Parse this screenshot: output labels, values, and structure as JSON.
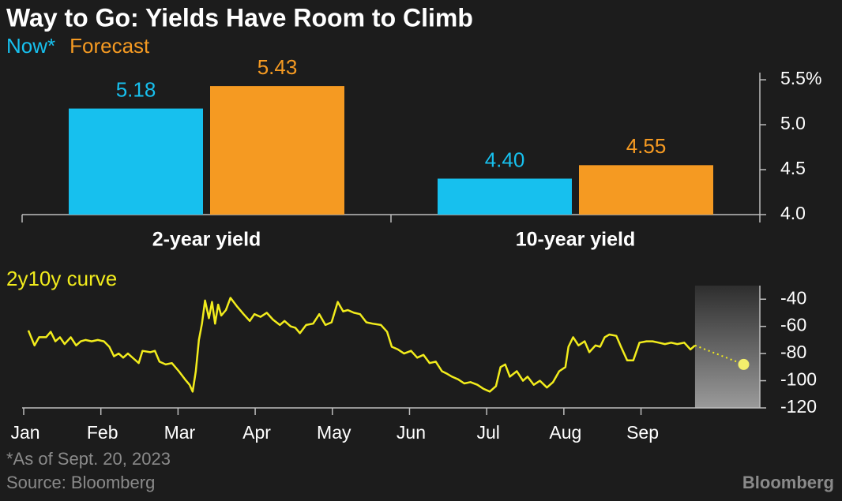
{
  "title": "Way to Go: Yields Have Room to Climb",
  "footnote": "*As of Sept. 20, 2023",
  "source": "Source: Bloomberg",
  "logo": "Bloomberg",
  "chart_data": [
    {
      "type": "bar",
      "categories": [
        "2-year yield",
        "10-year yield"
      ],
      "series": [
        {
          "name": "Now*",
          "color": "#17c0ee",
          "values": [
            5.18,
            4.4
          ],
          "value_labels": [
            "5.18",
            "4.40"
          ]
        },
        {
          "name": "Forecast",
          "color": "#f59a22",
          "values": [
            5.43,
            4.55
          ],
          "value_labels": [
            "5.43",
            "4.55"
          ]
        }
      ],
      "ylim": [
        4.0,
        5.58
      ],
      "yticks": [
        {
          "value": 4.0,
          "label": "4.0"
        },
        4.5,
        {
          "value": 5.0,
          "label": "5.0"
        },
        {
          "value": 5.5,
          "label": "5.5%"
        }
      ]
    },
    {
      "type": "line",
      "title": "2y10y curve",
      "color": "#f2ec1c",
      "x": [
        0.06,
        0.14,
        0.2,
        0.29,
        0.35,
        0.41,
        0.47,
        0.53,
        0.61,
        0.68,
        0.74,
        0.8,
        0.88,
        0.96,
        1.04,
        1.11,
        1.17,
        1.23,
        1.29,
        1.35,
        1.43,
        1.49,
        1.54,
        1.64,
        1.7,
        1.76,
        1.84,
        1.92,
        2.01,
        2.09,
        2.15,
        2.19,
        2.23,
        2.27,
        2.31,
        2.35,
        2.4,
        2.44,
        2.48,
        2.52,
        2.56,
        2.62,
        2.68,
        2.76,
        2.85,
        2.93,
        2.99,
        3.07,
        3.15,
        3.23,
        3.32,
        3.38,
        3.46,
        3.52,
        3.58,
        3.66,
        3.75,
        3.83,
        3.91,
        3.99,
        4.07,
        4.14,
        4.2,
        4.28,
        4.36,
        4.44,
        4.52,
        4.63,
        4.71,
        4.77,
        4.85,
        4.93,
        5.02,
        5.1,
        5.18,
        5.26,
        5.34,
        5.42,
        5.49,
        5.55,
        5.63,
        5.71,
        5.79,
        5.88,
        5.96,
        6.04,
        6.12,
        6.18,
        6.24,
        6.3,
        6.39,
        6.47,
        6.53,
        6.61,
        6.69,
        6.78,
        6.86,
        6.94,
        7.02,
        7.06,
        7.12,
        7.19,
        7.27,
        7.33,
        7.41,
        7.47,
        7.53,
        7.59,
        7.68,
        7.74,
        7.82,
        7.9,
        7.98,
        8.07,
        8.15,
        8.23,
        8.31,
        8.39,
        8.47,
        8.56,
        8.64,
        8.7
      ],
      "values": [
        -63,
        -74,
        -68,
        -68,
        -64,
        -71,
        -68,
        -73,
        -68,
        -74,
        -71,
        -70,
        -71,
        -70,
        -71,
        -75,
        -82,
        -80,
        -83,
        -80,
        -84,
        -87,
        -78,
        -79,
        -78,
        -86,
        -88,
        -87,
        -93,
        -99,
        -103,
        -108,
        -93,
        -70,
        -58,
        -41,
        -54,
        -42,
        -58,
        -44,
        -52,
        -48,
        -39,
        -45,
        -51,
        -56,
        -51,
        -53,
        -50,
        -55,
        -59,
        -56,
        -60,
        -61,
        -65,
        -59,
        -58,
        -51,
        -59,
        -57,
        -42,
        -49,
        -48,
        -50,
        -51,
        -57,
        -58,
        -59,
        -64,
        -75,
        -77,
        -80,
        -78,
        -83,
        -81,
        -87,
        -86,
        -93,
        -95,
        -97,
        -99,
        -102,
        -101,
        -103,
        -106,
        -108,
        -104,
        -90,
        -88,
        -97,
        -93,
        -100,
        -97,
        -103,
        -100,
        -105,
        -101,
        -93,
        -90,
        -75,
        -68,
        -74,
        -71,
        -79,
        -74,
        -75,
        -68,
        -66,
        -67,
        -75,
        -85,
        -85,
        -72,
        -71,
        -71,
        -72,
        -73,
        -72,
        -73,
        -72,
        -77,
        -74
      ],
      "forecast_x": 9.33,
      "forecast_value": -88,
      "xlim": [
        0,
        9.54
      ],
      "xticks": [
        {
          "value": 0,
          "label": "Jan"
        },
        {
          "value": 1,
          "label": "Feb"
        },
        {
          "value": 2,
          "label": "Mar"
        },
        {
          "value": 3,
          "label": "Apr"
        },
        {
          "value": 4,
          "label": "May"
        },
        {
          "value": 5,
          "label": "Jun"
        },
        {
          "value": 6,
          "label": "Jul"
        },
        {
          "value": 7,
          "label": "Aug"
        },
        {
          "value": 8,
          "label": "Sep"
        }
      ],
      "ylim": [
        -120,
        -30
      ],
      "yticks": [
        -40,
        -60,
        -80,
        -100,
        -120
      ]
    }
  ]
}
